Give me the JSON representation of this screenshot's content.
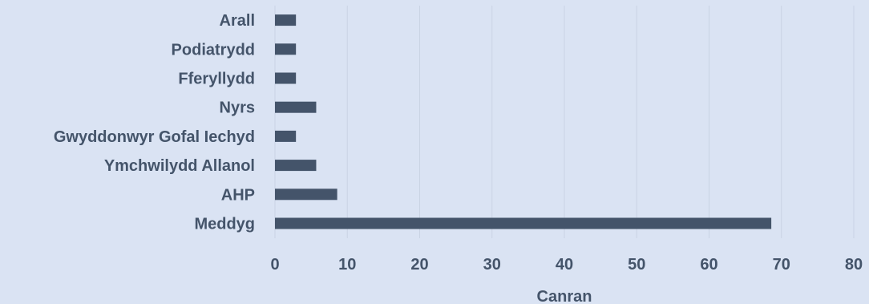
{
  "chart_data": {
    "type": "bar",
    "orientation": "horizontal",
    "categories": [
      "Arall",
      "Podiatrydd",
      "Fferyllydd",
      "Nyrs",
      "Gwyddonwyr Gofal Iechyd",
      "Ymchwilydd Allanol",
      "AHP",
      "Meddyg"
    ],
    "values": [
      2.9,
      2.9,
      2.9,
      5.7,
      2.9,
      5.7,
      8.6,
      68.6
    ],
    "title": "",
    "xlabel": "Canran",
    "ylabel": "",
    "xlim": [
      0,
      80
    ],
    "xticks": [
      "0",
      "10",
      "20",
      "30",
      "40",
      "50",
      "60",
      "70",
      "80"
    ],
    "grid": true,
    "colors": {
      "bar": "#44546a",
      "label": "#44546a",
      "grid": "#c9d3e4",
      "background": "#dae3f3"
    }
  }
}
